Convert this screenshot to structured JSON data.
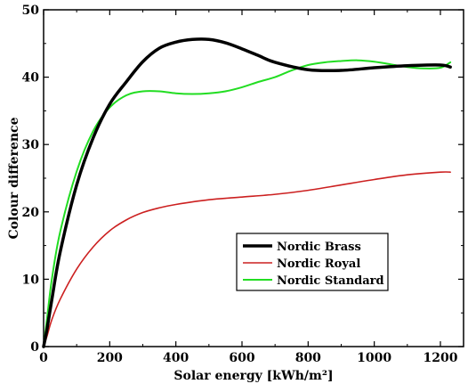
{
  "chart_data": {
    "type": "line",
    "title": "",
    "xlabel": "Solar energy [kWh/m²]",
    "ylabel": "Colour difference",
    "xlim": [
      0,
      1270
    ],
    "ylim": [
      0,
      50
    ],
    "xticks": [
      0,
      200,
      400,
      600,
      800,
      1000,
      1200
    ],
    "yticks": [
      0,
      10,
      20,
      30,
      40,
      50
    ],
    "grid": false,
    "legend_position": "lower-right",
    "series": [
      {
        "name": "Nordic Brass",
        "color": "#000000",
        "x": [
          0,
          10,
          25,
          50,
          100,
          150,
          200,
          250,
          300,
          350,
          400,
          450,
          500,
          550,
          600,
          650,
          700,
          800,
          900,
          1000,
          1100,
          1200,
          1230
        ],
        "y": [
          0,
          2.5,
          7,
          14,
          24,
          31,
          36,
          39.3,
          42.3,
          44.3,
          45.2,
          45.6,
          45.6,
          45.1,
          44.2,
          43.2,
          42.2,
          41.1,
          41.0,
          41.4,
          41.7,
          41.8,
          41.5
        ]
      },
      {
        "name": "Nordic Royal",
        "color": "#cc2020",
        "x": [
          0,
          10,
          25,
          50,
          100,
          150,
          200,
          250,
          300,
          350,
          400,
          500,
          600,
          700,
          800,
          900,
          1000,
          1100,
          1200,
          1230
        ],
        "y": [
          0,
          1.5,
          4,
          7,
          11.5,
          14.8,
          17.2,
          18.8,
          19.9,
          20.6,
          21.1,
          21.8,
          22.2,
          22.6,
          23.2,
          24.0,
          24.8,
          25.5,
          25.9,
          25.9
        ]
      },
      {
        "name": "Nordic Standard",
        "color": "#22dd22",
        "x": [
          0,
          10,
          25,
          50,
          100,
          150,
          200,
          250,
          300,
          350,
          400,
          450,
          500,
          550,
          600,
          650,
          700,
          750,
          800,
          850,
          900,
          950,
          1000,
          1050,
          1100,
          1150,
          1200,
          1230
        ],
        "y": [
          0,
          4,
          10,
          17,
          26,
          32,
          35.5,
          37.3,
          37.9,
          37.9,
          37.6,
          37.5,
          37.6,
          37.9,
          38.5,
          39.3,
          40.0,
          41.0,
          41.8,
          42.2,
          42.4,
          42.5,
          42.3,
          41.9,
          41.5,
          41.3,
          41.4,
          42.2
        ]
      }
    ]
  }
}
